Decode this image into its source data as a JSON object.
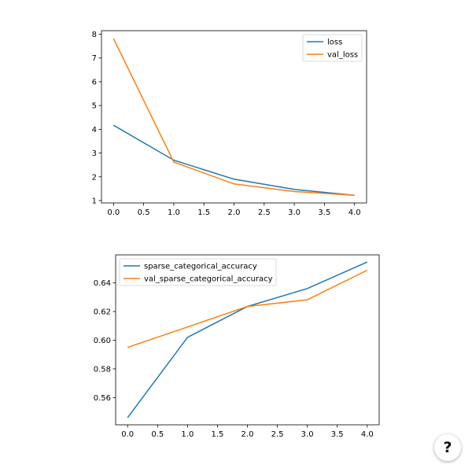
{
  "colors": {
    "series_1": "#1f77b4",
    "series_2": "#ff7f0e"
  },
  "help_button": {
    "label": "?",
    "icon": "help-icon"
  },
  "chart_data": [
    {
      "type": "line",
      "title": "",
      "xlabel": "",
      "ylabel": "",
      "x": [
        0,
        1,
        2,
        3,
        4
      ],
      "xlim": [
        -0.2,
        4.2
      ],
      "ylim": [
        0.9,
        8.15
      ],
      "xticks": [
        "0.0",
        "0.5",
        "1.0",
        "1.5",
        "2.0",
        "2.5",
        "3.0",
        "3.5",
        "4.0"
      ],
      "yticks": [
        "1",
        "2",
        "3",
        "4",
        "5",
        "6",
        "7",
        "8"
      ],
      "grid": false,
      "legend": "upper right",
      "series": [
        {
          "name": "loss",
          "values": [
            4.17,
            2.7,
            1.9,
            1.47,
            1.22
          ]
        },
        {
          "name": "val_loss",
          "values": [
            7.82,
            2.62,
            1.7,
            1.38,
            1.22
          ]
        }
      ]
    },
    {
      "type": "line",
      "title": "",
      "xlabel": "",
      "ylabel": "",
      "x": [
        0,
        1,
        2,
        3,
        4
      ],
      "xlim": [
        -0.2,
        4.2
      ],
      "ylim": [
        0.541,
        0.6595
      ],
      "xticks": [
        "0.0",
        "0.5",
        "1.0",
        "1.5",
        "2.0",
        "2.5",
        "3.0",
        "3.5",
        "4.0"
      ],
      "yticks": [
        "0.56",
        "0.58",
        "0.60",
        "0.62",
        "0.64"
      ],
      "grid": false,
      "legend": "upper left",
      "series": [
        {
          "name": "sparse_categorical_accuracy",
          "values": [
            0.546,
            0.602,
            0.6235,
            0.636,
            0.6545
          ]
        },
        {
          "name": "val_sparse_categorical_accuracy",
          "values": [
            0.595,
            0.6092,
            0.6235,
            0.6282,
            0.6488
          ]
        }
      ]
    }
  ]
}
